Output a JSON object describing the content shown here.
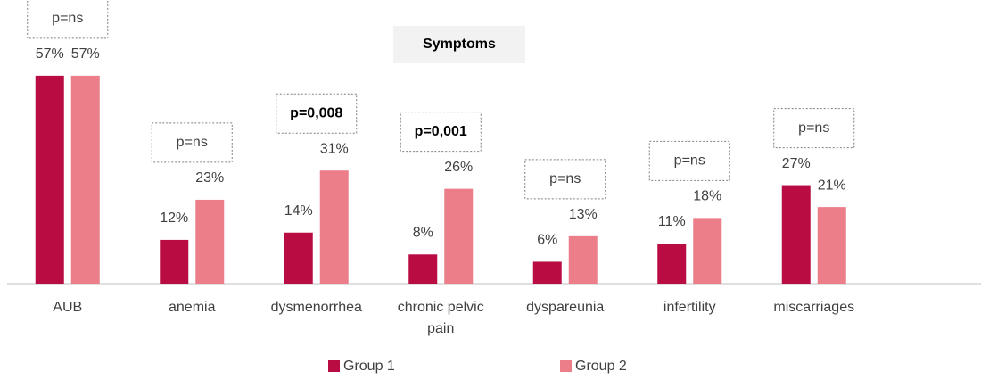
{
  "chart_data": {
    "type": "bar",
    "title": "Symptoms",
    "categories": [
      "AUB",
      "anemia",
      "dysmenorrhea",
      "chronic pelvic pain",
      "dyspareunia",
      "infertility",
      "miscarriages"
    ],
    "series": [
      {
        "name": "Group 1",
        "color": "#b80c43",
        "values": [
          57,
          12,
          14,
          8,
          6,
          11,
          27
        ],
        "value_labels": [
          "57%",
          "12%",
          "14%",
          "8%",
          "6%",
          "11%",
          "27%"
        ]
      },
      {
        "name": "Group 2",
        "color": "#eb7e89",
        "values": [
          57,
          23,
          31,
          26,
          13,
          18,
          21
        ],
        "value_labels": [
          "57%",
          "23%",
          "31%",
          "26%",
          "13%",
          "18%",
          "21%"
        ]
      }
    ],
    "annotations": [
      {
        "text": "p=ns",
        "bold": false
      },
      {
        "text": "p=ns",
        "bold": false
      },
      {
        "text": "p=0,008",
        "bold": true
      },
      {
        "text": "p=0,001",
        "bold": true
      },
      {
        "text": "p=ns",
        "bold": false
      },
      {
        "text": "p=ns",
        "bold": false
      },
      {
        "text": "p=ns",
        "bold": false
      }
    ],
    "ylim": [
      0,
      60
    ],
    "legend": "bottom"
  }
}
